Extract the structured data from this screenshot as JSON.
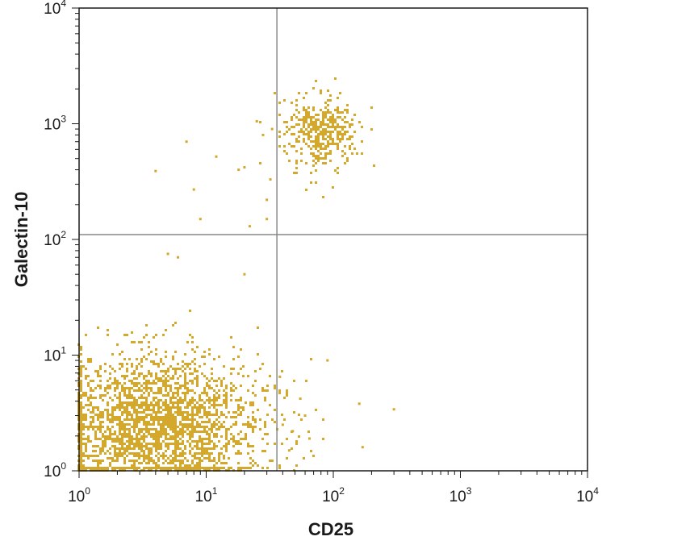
{
  "chart_data": {
    "type": "scatter",
    "title": "",
    "xlabel": "CD25",
    "ylabel": "Galectin-10",
    "x_scale": "log",
    "y_scale": "log",
    "xlim": [
      1,
      10000
    ],
    "ylim": [
      1,
      10000
    ],
    "x_ticks": [
      {
        "base": "10",
        "exp": "0"
      },
      {
        "base": "10",
        "exp": "1"
      },
      {
        "base": "10",
        "exp": "2"
      },
      {
        "base": "10",
        "exp": "3"
      },
      {
        "base": "10",
        "exp": "4"
      }
    ],
    "y_ticks": [
      {
        "base": "10",
        "exp": "0"
      },
      {
        "base": "10",
        "exp": "1"
      },
      {
        "base": "10",
        "exp": "2"
      },
      {
        "base": "10",
        "exp": "3"
      },
      {
        "base": "10",
        "exp": "4"
      }
    ],
    "quadrant_gates": {
      "x": 36,
      "y": 110
    },
    "grid": false,
    "legend": "none",
    "point_color": "#d4a82a",
    "line_color": "#888888",
    "populations": [
      {
        "center_x": 4,
        "center_y": 2.5,
        "count": 2600,
        "spread_x_decades": 0.42,
        "spread_y_decades": 0.3
      },
      {
        "center_x": 80,
        "center_y": 850,
        "count": 420,
        "spread_x_decades": 0.14,
        "spread_y_decades": 0.16
      }
    ],
    "sparse_points": [
      {
        "x": 7,
        "y": 700
      },
      {
        "x": 12,
        "y": 520
      },
      {
        "x": 8,
        "y": 270
      },
      {
        "x": 4,
        "y": 390
      },
      {
        "x": 25,
        "y": 1050
      },
      {
        "x": 28,
        "y": 800
      },
      {
        "x": 20,
        "y": 420
      },
      {
        "x": 22,
        "y": 130
      },
      {
        "x": 30,
        "y": 220
      },
      {
        "x": 32,
        "y": 330
      },
      {
        "x": 30,
        "y": 150
      },
      {
        "x": 33,
        "y": 900
      },
      {
        "x": 9,
        "y": 150
      },
      {
        "x": 5,
        "y": 75
      },
      {
        "x": 6,
        "y": 70
      },
      {
        "x": 18,
        "y": 400
      },
      {
        "x": 90,
        "y": 9
      },
      {
        "x": 160,
        "y": 3.8
      },
      {
        "x": 300,
        "y": 3.4
      },
      {
        "x": 170,
        "y": 1.6
      },
      {
        "x": 60,
        "y": 3.0
      },
      {
        "x": 40,
        "y": 2.5
      },
      {
        "x": 45,
        "y": 1.5
      },
      {
        "x": 55,
        "y": 4.2
      },
      {
        "x": 38,
        "y": 6.5
      },
      {
        "x": 48,
        "y": 2.2
      },
      {
        "x": 65,
        "y": 1.9
      },
      {
        "x": 20,
        "y": 50
      }
    ]
  }
}
